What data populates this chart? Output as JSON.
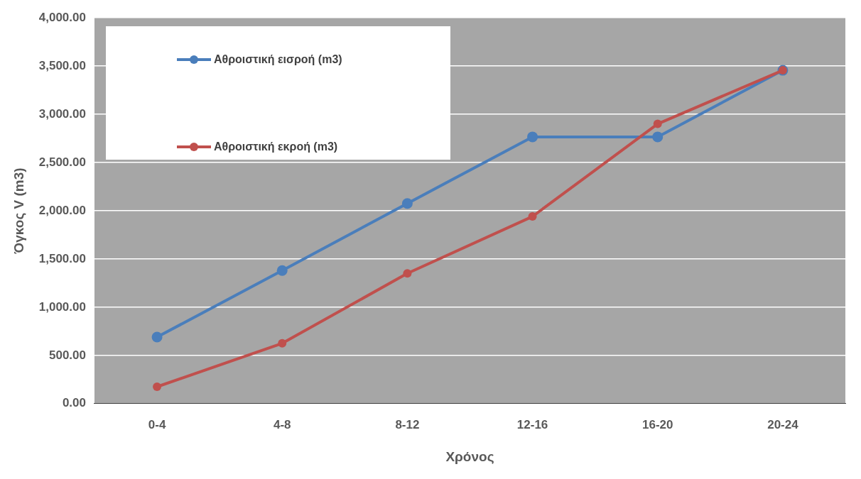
{
  "chart_data": {
    "type": "line",
    "xlabel": "Χρόνος",
    "ylabel": "Όγκος V (m3)",
    "categories": [
      "0-4",
      "4-8",
      "8-12",
      "12-16",
      "16-20",
      "20-24"
    ],
    "series": [
      {
        "name": "Αθροιστική εισροή (m3)",
        "color": "#4a7ebb",
        "values": [
          690,
          1380,
          2075,
          2765,
          2765,
          3455
        ]
      },
      {
        "name": "Αθροιστική εκροή (m3)",
        "color": "#c0504d",
        "values": [
          175,
          625,
          1350,
          1940,
          2900,
          3455
        ]
      }
    ],
    "ylim": [
      0,
      4000
    ],
    "yticks": [
      {
        "value": 0,
        "label": "0.00"
      },
      {
        "value": 500,
        "label": "500.00"
      },
      {
        "value": 1000,
        "label": "1,000.00"
      },
      {
        "value": 1500,
        "label": "1,500.00"
      },
      {
        "value": 2000,
        "label": "2,000.00"
      },
      {
        "value": 2500,
        "label": "2,500.00"
      },
      {
        "value": 3000,
        "label": "3,000.00"
      },
      {
        "value": 3500,
        "label": "3,500.00"
      },
      {
        "value": 4000,
        "label": "4,000.00"
      }
    ],
    "grid": "y",
    "legend": "top left",
    "marker": "circle",
    "line_style": "solid"
  }
}
